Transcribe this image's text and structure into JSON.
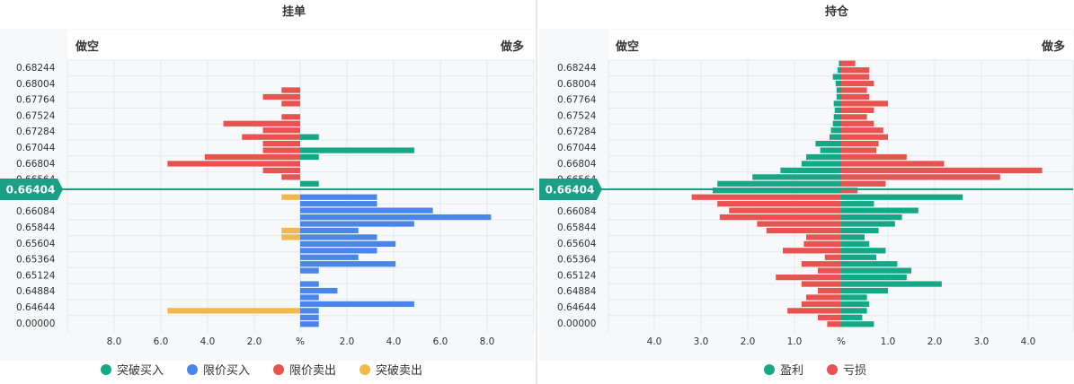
{
  "panels": {
    "left_title": "挂单",
    "right_title": "持仓",
    "left_short": "做空",
    "left_long": "做多",
    "right_short": "做空",
    "right_long": "做多"
  },
  "price_labels": [
    "0.68244",
    "0.68004",
    "0.67764",
    "0.67524",
    "0.67284",
    "0.67044",
    "0.66804",
    "0.66564",
    "0.66324",
    "0.66084",
    "0.65844",
    "0.65604",
    "0.65364",
    "0.65124",
    "0.64884",
    "0.64644",
    "0.00000"
  ],
  "current_price": "0.66404",
  "colors": {
    "green": "#14a887",
    "blue": "#4a86e8",
    "red": "#e9534f",
    "yellow": "#f2b94a",
    "grid": "#e6e8eb",
    "price_line": "#1a9e86"
  },
  "legend_left": [
    {
      "label": "突破买入",
      "color": "#14a887"
    },
    {
      "label": "限价买入",
      "color": "#4a86e8"
    },
    {
      "label": "限价卖出",
      "color": "#e9534f"
    },
    {
      "label": "突破卖出",
      "color": "#f2b94a"
    }
  ],
  "legend_right": [
    {
      "label": "盈利",
      "color": "#14a887"
    },
    {
      "label": "亏损",
      "color": "#e9534f"
    }
  ],
  "chart_data": [
    {
      "type": "bar",
      "title": "挂单",
      "orientation": "horizontal-diverging",
      "x_tick_labels": [
        "8.0",
        "6.0",
        "4.0",
        "2.0",
        "%",
        "2.0",
        "4.0",
        "6.0",
        "8.0"
      ],
      "xlim": [
        -10,
        10
      ],
      "rows": 40,
      "series": [
        {
          "name": "限价卖出",
          "side": "left",
          "color": "#e9534f",
          "bars": [
            [
              4,
              0.8
            ],
            [
              5,
              1.6
            ],
            [
              6,
              0.8
            ],
            [
              8,
              0.8
            ],
            [
              9,
              3.3
            ],
            [
              10,
              1.6
            ],
            [
              11,
              2.5
            ],
            [
              12,
              1.6
            ],
            [
              13,
              1.6
            ],
            [
              14,
              4.1
            ],
            [
              15,
              5.7
            ],
            [
              16,
              1.6
            ],
            [
              17,
              0.8
            ]
          ]
        },
        {
          "name": "突破卖出",
          "side": "left",
          "color": "#f2b94a",
          "bars": [
            [
              20,
              0.8
            ],
            [
              25,
              0.8
            ],
            [
              26,
              0.8
            ],
            [
              37,
              5.7
            ]
          ]
        },
        {
          "name": "突破买入",
          "side": "right",
          "color": "#14a887",
          "bars": [
            [
              11,
              0.8
            ],
            [
              13,
              4.9
            ],
            [
              14,
              0.8
            ],
            [
              18,
              0.8
            ]
          ]
        },
        {
          "name": "限价买入",
          "side": "right",
          "color": "#4a86e8",
          "bars": [
            [
              20,
              3.3
            ],
            [
              21,
              3.3
            ],
            [
              22,
              5.7
            ],
            [
              23,
              8.2
            ],
            [
              24,
              4.9
            ],
            [
              25,
              2.5
            ],
            [
              26,
              3.3
            ],
            [
              27,
              4.1
            ],
            [
              28,
              3.3
            ],
            [
              29,
              2.5
            ],
            [
              30,
              4.1
            ],
            [
              31,
              0.8
            ],
            [
              33,
              0.8
            ],
            [
              34,
              1.6
            ],
            [
              35,
              0.8
            ],
            [
              36,
              4.9
            ],
            [
              37,
              0.8
            ],
            [
              38,
              0.8
            ],
            [
              39,
              0.8
            ]
          ]
        }
      ]
    },
    {
      "type": "bar",
      "title": "持仓",
      "orientation": "horizontal-diverging",
      "x_tick_labels": [
        "4.0",
        "3.0",
        "2.0",
        "1.0",
        "%",
        "1.0",
        "2.0",
        "3.0",
        "4.0"
      ],
      "xlim": [
        -4.5,
        4.9
      ],
      "rows": 40,
      "series": [
        {
          "name": "盈利",
          "color": "#14a887",
          "bars": [
            [
              0,
              -0.05
            ],
            [
              1,
              -0.08
            ],
            [
              2,
              -0.18
            ],
            [
              3,
              -0.12
            ],
            [
              4,
              -0.1
            ],
            [
              5,
              -0.1
            ],
            [
              6,
              -0.16
            ],
            [
              7,
              -0.14
            ],
            [
              8,
              -0.16
            ],
            [
              9,
              -0.18
            ],
            [
              10,
              -0.22
            ],
            [
              11,
              -0.25
            ],
            [
              12,
              -0.55
            ],
            [
              13,
              -0.45
            ],
            [
              14,
              -0.75
            ],
            [
              15,
              -0.85
            ],
            [
              16,
              -1.3
            ],
            [
              17,
              -1.9
            ],
            [
              18,
              -2.65
            ],
            [
              19,
              -2.75
            ],
            [
              20,
              2.6
            ],
            [
              21,
              0.7
            ],
            [
              22,
              1.65
            ],
            [
              23,
              1.3
            ],
            [
              24,
              1.15
            ],
            [
              25,
              0.8
            ],
            [
              26,
              0.5
            ],
            [
              27,
              0.6
            ],
            [
              28,
              0.95
            ],
            [
              29,
              0.75
            ],
            [
              30,
              1.2
            ],
            [
              31,
              1.5
            ],
            [
              32,
              1.4
            ],
            [
              33,
              2.15
            ],
            [
              34,
              1.0
            ],
            [
              35,
              0.55
            ],
            [
              36,
              0.6
            ],
            [
              37,
              0.55
            ],
            [
              38,
              0.45
            ],
            [
              39,
              0.7
            ]
          ]
        },
        {
          "name": "亏损",
          "color": "#e9534f",
          "bars": [
            [
              0,
              0.3
            ],
            [
              1,
              0.6
            ],
            [
              2,
              0.6
            ],
            [
              3,
              0.7
            ],
            [
              4,
              0.55
            ],
            [
              5,
              0.6
            ],
            [
              6,
              1.0
            ],
            [
              7,
              0.7
            ],
            [
              8,
              0.55
            ],
            [
              9,
              0.7
            ],
            [
              10,
              0.9
            ],
            [
              11,
              1.0
            ],
            [
              12,
              0.8
            ],
            [
              13,
              0.75
            ],
            [
              14,
              1.4
            ],
            [
              15,
              2.2
            ],
            [
              16,
              4.3
            ],
            [
              17,
              3.4
            ],
            [
              18,
              0.95
            ],
            [
              19,
              0.35
            ],
            [
              20,
              -3.2
            ],
            [
              21,
              -2.65
            ],
            [
              22,
              -2.4
            ],
            [
              23,
              -2.6
            ],
            [
              24,
              -1.8
            ],
            [
              25,
              -1.6
            ],
            [
              26,
              -0.75
            ],
            [
              27,
              -0.8
            ],
            [
              28,
              -1.25
            ],
            [
              29,
              -0.35
            ],
            [
              30,
              -0.85
            ],
            [
              31,
              -0.5
            ],
            [
              32,
              -1.4
            ],
            [
              33,
              -0.85
            ],
            [
              34,
              -0.5
            ],
            [
              35,
              -0.75
            ],
            [
              36,
              -0.85
            ],
            [
              37,
              -1.15
            ],
            [
              38,
              -0.5
            ],
            [
              39,
              -0.3
            ]
          ]
        }
      ]
    }
  ]
}
